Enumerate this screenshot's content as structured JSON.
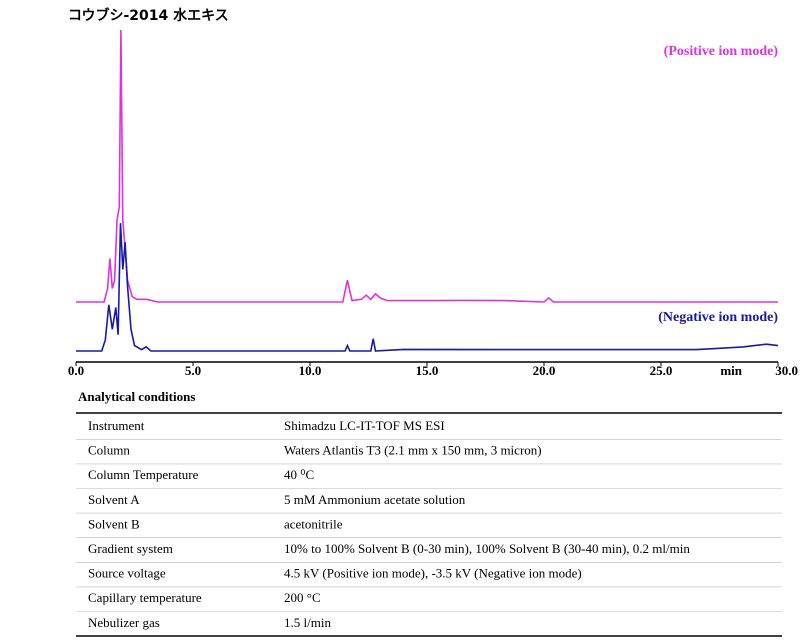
{
  "chart_data": {
    "type": "line",
    "title": "コウブシ-2014 水エキス",
    "x_label": "min",
    "xlim": [
      0,
      30
    ],
    "xticks": [
      {
        "value": 0,
        "label": "0.0"
      },
      {
        "value": 5,
        "label": "5.0"
      },
      {
        "value": 10,
        "label": "10.0"
      },
      {
        "value": 15,
        "label": "15.0"
      },
      {
        "value": 20,
        "label": "20.0"
      },
      {
        "value": 25,
        "label": "25.0"
      },
      {
        "value": 30,
        "label": "30.0"
      }
    ],
    "series": [
      {
        "name": "(Positive ion mode)",
        "color": "#dd33dd",
        "x": [
          0,
          1.2,
          1.35,
          1.45,
          1.55,
          1.65,
          1.75,
          1.85,
          1.92,
          2.0,
          2.1,
          2.2,
          2.4,
          2.6,
          3.0,
          3.5,
          11.4,
          11.6,
          11.7,
          11.8,
          12.2,
          12.4,
          12.6,
          12.8,
          13.0,
          13.3,
          15.5,
          16.5,
          18.3,
          20.0,
          20.2,
          20.4,
          30
        ],
        "values": [
          0,
          0,
          5,
          16,
          5,
          8,
          30,
          35,
          100,
          30,
          20,
          8,
          2,
          1,
          1,
          0,
          0,
          8,
          4,
          0.5,
          1,
          2.5,
          1,
          3,
          1.5,
          0.5,
          0.5,
          0.6,
          0.5,
          0,
          1.5,
          0,
          0
        ]
      },
      {
        "name": "(Negative ion mode)",
        "color": "#1a1aaa",
        "x": [
          0,
          1.1,
          1.25,
          1.4,
          1.55,
          1.7,
          1.8,
          1.9,
          2.0,
          2.1,
          2.2,
          2.35,
          2.5,
          2.8,
          3.0,
          3.2,
          11.5,
          11.6,
          11.7,
          12.6,
          12.7,
          12.8,
          14.0,
          20.0,
          26.5,
          27.5,
          28.5,
          29.5,
          30
        ],
        "values": [
          0,
          0,
          4,
          17,
          8,
          16,
          6,
          47,
          30,
          40,
          24,
          8,
          2,
          0.5,
          1.5,
          0,
          0,
          2,
          0,
          0,
          4.5,
          0,
          0.6,
          0.5,
          0.5,
          1,
          1.5,
          2.5,
          2
        ]
      }
    ]
  },
  "table": {
    "title": "Analytical conditions",
    "rows": [
      [
        "Instrument",
        "Shimadzu LC-IT-TOF MS ESI"
      ],
      [
        "Column",
        "Waters Atlantis T3 (2.1 mm x 150 mm, 3 micron)"
      ],
      [
        "Column Temperature",
        "40 ⁰C"
      ],
      [
        "Solvent A",
        "5 mM Ammonium acetate solution"
      ],
      [
        "Solvent B",
        "acetonitrile"
      ],
      [
        "Gradient system",
        "10% to 100% Solvent B (0-30 min), 100% Solvent B (30-40 min), 0.2 ml/min"
      ],
      [
        "Source voltage",
        "4.5 kV (Positive ion mode), -3.5 kV (Negative ion mode)"
      ],
      [
        "Capillary temperature",
        "200 °C"
      ],
      [
        "Nebulizer gas",
        "1.5 l/min"
      ]
    ]
  }
}
